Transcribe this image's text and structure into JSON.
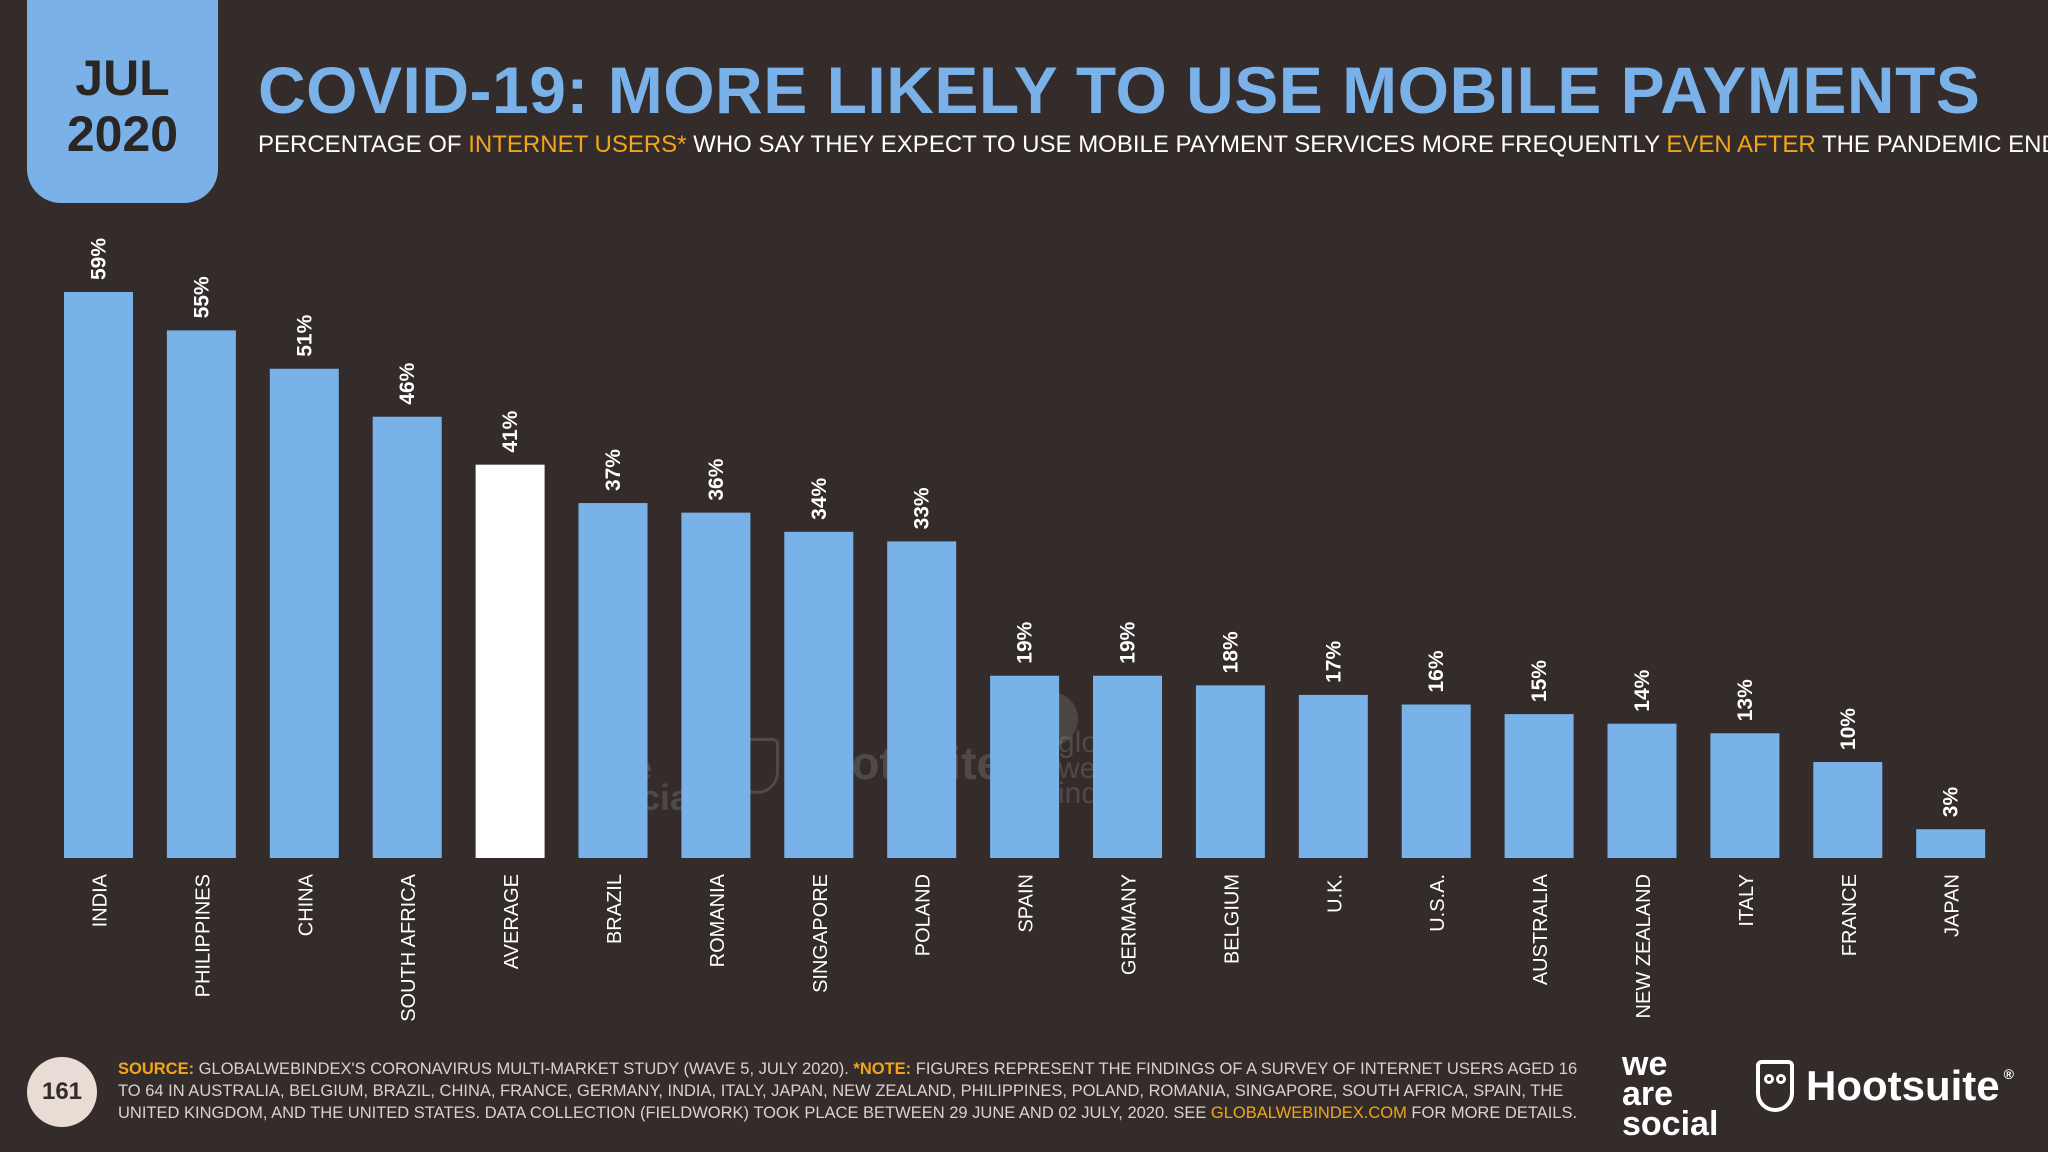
{
  "date_badge": {
    "month": "JUL",
    "year": "2020"
  },
  "header": {
    "title": "COVID-19: MORE LIKELY TO USE MOBILE PAYMENTS",
    "subtitle_parts": [
      "PERCENTAGE OF ",
      "INTERNET USERS*",
      " WHO SAY THEY EXPECT TO USE MOBILE PAYMENT SERVICES MORE FREQUENTLY ",
      "EVEN AFTER",
      " THE PANDEMIC ENDS"
    ]
  },
  "colors": {
    "background": "#332c2b",
    "bar": "#78b2e9",
    "bar_highlight": "#ffffff",
    "accent_orange": "#f2a51a",
    "title_blue": "#7ab1e8"
  },
  "chart_data": {
    "type": "bar",
    "categories": [
      "INDIA",
      "PHILIPPINES",
      "CHINA",
      "SOUTH AFRICA",
      "AVERAGE",
      "BRAZIL",
      "ROMANIA",
      "SINGAPORE",
      "POLAND",
      "SPAIN",
      "GERMANY",
      "BELGIUM",
      "U.K.",
      "U.S.A.",
      "AUSTRALIA",
      "NEW ZEALAND",
      "ITALY",
      "FRANCE",
      "JAPAN"
    ],
    "values": [
      59,
      55,
      51,
      46,
      41,
      37,
      36,
      34,
      33,
      19,
      19,
      18,
      17,
      16,
      15,
      14,
      13,
      10,
      3
    ],
    "data_labels": [
      "59%",
      "55%",
      "51%",
      "46%",
      "41%",
      "37%",
      "36%",
      "34%",
      "33%",
      "19%",
      "19%",
      "18%",
      "17%",
      "16%",
      "15%",
      "14%",
      "13%",
      "10%",
      "3%"
    ],
    "highlight": "AVERAGE",
    "ylim": [
      0,
      59
    ],
    "grid": false,
    "legend": "none"
  },
  "watermarks": {
    "was_lines": [
      "we",
      "are",
      "social"
    ],
    "hootsuite": "Hootsuite",
    "gwi_lines": [
      "global",
      "web",
      "index"
    ]
  },
  "footer": {
    "page_number": "161",
    "source_label": "SOURCE:",
    "source_text": " GLOBALWEBINDEX'S CORONAVIRUS MULTI-MARKET STUDY (WAVE 5, JULY 2020). ",
    "note_label": "*NOTE:",
    "note_text": " FIGURES REPRESENT THE FINDINGS OF A SURVEY OF INTERNET USERS AGED 16 TO 64 IN AUSTRALIA, BELGIUM, BRAZIL, CHINA, FRANCE, GERMANY, INDIA, ITALY, JAPAN, NEW ZEALAND, PHILIPPINES, POLAND, ROMANIA, SINGAPORE, SOUTH AFRICA, SPAIN, THE UNITED KINGDOM, AND THE UNITED STATES. DATA COLLECTION (FIELDWORK) TOOK PLACE BETWEEN 29 JUNE AND 02 JULY, 2020. SEE ",
    "link_text": "GLOBALWEBINDEX.COM",
    "tail_text": " FOR MORE DETAILS.",
    "logo_was_lines": [
      "we",
      "are",
      "social"
    ],
    "logo_hootsuite": "Hootsuite",
    "logo_hootsuite_mark": "®"
  }
}
